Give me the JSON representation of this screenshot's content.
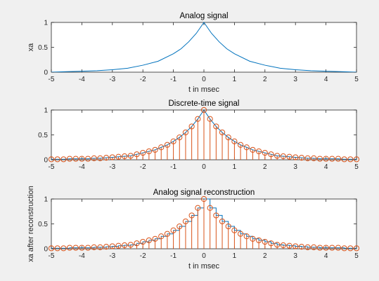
{
  "chart_data": [
    {
      "type": "line",
      "title": "Analog signal",
      "xlabel": "t in msec",
      "ylabel": "xa",
      "xlim": [
        -5,
        5
      ],
      "ylim": [
        0,
        1
      ],
      "xticks": [
        "-5",
        "-4",
        "-3",
        "-2",
        "-1",
        "0",
        "1",
        "2",
        "3",
        "4",
        "5"
      ],
      "yticks": [
        "0",
        "0.5",
        "1"
      ],
      "grid": false,
      "series": [
        {
          "color": "#0072bd",
          "x": [
            -5,
            -4.5,
            -4,
            -3.5,
            -3,
            -2.5,
            -2,
            -1.5,
            -1,
            -0.75,
            -0.5,
            -0.25,
            0,
            0.25,
            0.5,
            0.75,
            1,
            1.5,
            2,
            2.5,
            3,
            3.5,
            4,
            4.5,
            5
          ],
          "y": [
            0.0,
            0.01,
            0.02,
            0.03,
            0.05,
            0.08,
            0.14,
            0.22,
            0.37,
            0.47,
            0.61,
            0.78,
            1.0,
            0.78,
            0.61,
            0.47,
            0.37,
            0.22,
            0.14,
            0.08,
            0.05,
            0.03,
            0.02,
            0.01,
            0.0
          ]
        }
      ]
    },
    {
      "type": "stem",
      "title": "Discrete-time signal",
      "xlabel": "",
      "ylabel": "",
      "xlim": [
        -5,
        5
      ],
      "ylim": [
        0,
        1
      ],
      "xticks": [
        "-5",
        "-4",
        "-3",
        "-2",
        "-1",
        "0",
        "1",
        "2",
        "3",
        "4",
        "5"
      ],
      "yticks": [
        "0",
        "0.5",
        "1"
      ],
      "grid": false,
      "series": [
        {
          "color": "#d95319",
          "x": [
            -5,
            -4.8,
            -4.6,
            -4.4,
            -4.2,
            -4,
            -3.8,
            -3.6,
            -3.4,
            -3.2,
            -3,
            -2.8,
            -2.6,
            -2.4,
            -2.2,
            -2,
            -1.8,
            -1.6,
            -1.4,
            -1.2,
            -1,
            -0.8,
            -0.6,
            -0.4,
            -0.2,
            0,
            0.2,
            0.4,
            0.6,
            0.8,
            1,
            1.2,
            1.4,
            1.6,
            1.8,
            2,
            2.2,
            2.4,
            2.6,
            2.8,
            3,
            3.2,
            3.4,
            3.6,
            3.8,
            4,
            4.2,
            4.4,
            4.6,
            4.8,
            5
          ],
          "y": [
            0.01,
            0.01,
            0.01,
            0.02,
            0.02,
            0.02,
            0.02,
            0.03,
            0.03,
            0.04,
            0.05,
            0.06,
            0.07,
            0.08,
            0.11,
            0.14,
            0.17,
            0.2,
            0.25,
            0.3,
            0.37,
            0.45,
            0.55,
            0.67,
            0.82,
            1.0,
            0.82,
            0.67,
            0.55,
            0.45,
            0.37,
            0.3,
            0.25,
            0.2,
            0.17,
            0.14,
            0.11,
            0.08,
            0.07,
            0.06,
            0.05,
            0.04,
            0.03,
            0.03,
            0.02,
            0.02,
            0.02,
            0.02,
            0.01,
            0.01,
            0.01
          ]
        }
      ]
    },
    {
      "type": "stem",
      "title": "Analog signal reconstruction",
      "xlabel": "t in msec",
      "ylabel": "xa after reconstruction",
      "xlim": [
        -5,
        5
      ],
      "ylim": [
        0,
        1
      ],
      "xticks": [
        "-5",
        "-4",
        "-3",
        "-2",
        "-1",
        "0",
        "1",
        "2",
        "3",
        "4",
        "5"
      ],
      "yticks": [
        "0",
        "0.5",
        "1"
      ],
      "grid": false,
      "reconstruction": {
        "color": "#0072bd",
        "style": "zero-order-hold"
      },
      "series": [
        {
          "color": "#d95319",
          "x": [
            -5,
            -4.8,
            -4.6,
            -4.4,
            -4.2,
            -4,
            -3.8,
            -3.6,
            -3.4,
            -3.2,
            -3,
            -2.8,
            -2.6,
            -2.4,
            -2.2,
            -2,
            -1.8,
            -1.6,
            -1.4,
            -1.2,
            -1,
            -0.8,
            -0.6,
            -0.4,
            -0.2,
            0,
            0.2,
            0.4,
            0.6,
            0.8,
            1,
            1.2,
            1.4,
            1.6,
            1.8,
            2,
            2.2,
            2.4,
            2.6,
            2.8,
            3,
            3.2,
            3.4,
            3.6,
            3.8,
            4,
            4.2,
            4.4,
            4.6,
            4.8,
            5
          ],
          "y": [
            0.01,
            0.01,
            0.01,
            0.02,
            0.02,
            0.02,
            0.02,
            0.03,
            0.03,
            0.04,
            0.05,
            0.06,
            0.07,
            0.08,
            0.11,
            0.14,
            0.17,
            0.2,
            0.25,
            0.3,
            0.37,
            0.45,
            0.55,
            0.67,
            0.82,
            1.0,
            0.82,
            0.67,
            0.55,
            0.45,
            0.37,
            0.3,
            0.25,
            0.2,
            0.17,
            0.14,
            0.11,
            0.08,
            0.07,
            0.06,
            0.05,
            0.04,
            0.03,
            0.03,
            0.02,
            0.02,
            0.02,
            0.02,
            0.01,
            0.01,
            0.01
          ]
        }
      ]
    }
  ]
}
